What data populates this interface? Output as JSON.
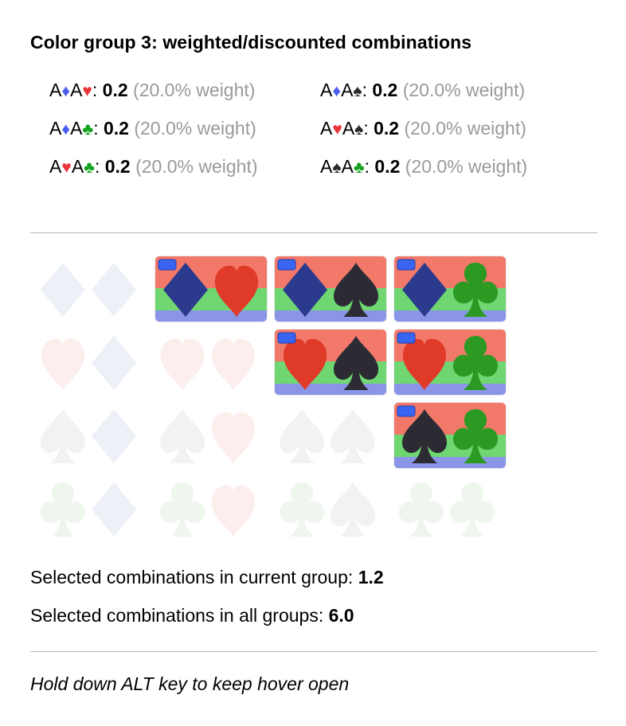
{
  "title": "Color group 3: weighted/discounted combinations",
  "combos": [
    {
      "r1": "A",
      "s1": "♦",
      "c1": "blue",
      "r2": "A",
      "s2": "♥",
      "c2": "red",
      "value": "0.2",
      "weight": "(20.0% weight)"
    },
    {
      "r1": "A",
      "s1": "♦",
      "c1": "blue",
      "r2": "A",
      "s2": "♠",
      "c2": "black",
      "value": "0.2",
      "weight": "(20.0% weight)"
    },
    {
      "r1": "A",
      "s1": "♦",
      "c1": "blue",
      "r2": "A",
      "s2": "♣",
      "c2": "green",
      "value": "0.2",
      "weight": "(20.0% weight)"
    },
    {
      "r1": "A",
      "s1": "♥",
      "c1": "red",
      "r2": "A",
      "s2": "♠",
      "c2": "black",
      "value": "0.2",
      "weight": "(20.0% weight)"
    },
    {
      "r1": "A",
      "s1": "♥",
      "c1": "red",
      "r2": "A",
      "s2": "♣",
      "c2": "green",
      "value": "0.2",
      "weight": "(20.0% weight)"
    },
    {
      "r1": "A",
      "s1": "♠",
      "c1": "black",
      "r2": "A",
      "s2": "♣",
      "c2": "green",
      "value": "0.2",
      "weight": "(20.0% weight)"
    }
  ],
  "grid": {
    "row_suits": [
      "diamond",
      "heart",
      "spade",
      "club"
    ],
    "col_suits": [
      "diamond",
      "heart",
      "spade",
      "club"
    ],
    "selected": [
      [
        0,
        1
      ],
      [
        0,
        2
      ],
      [
        0,
        3
      ],
      [
        1,
        2
      ],
      [
        1,
        3
      ],
      [
        2,
        3
      ]
    ],
    "colors": {
      "band_top": "#f2786a",
      "band_mid": "#6fd672",
      "band_bottom": "#8a95e8",
      "indicator": "#3a64f2"
    }
  },
  "stats": {
    "current_label": "Selected combinations in current group: ",
    "current_value": "1.2",
    "all_label": "Selected combinations in all groups: ",
    "all_value": "6.0"
  },
  "footer": "Hold down ALT key to keep hover open"
}
